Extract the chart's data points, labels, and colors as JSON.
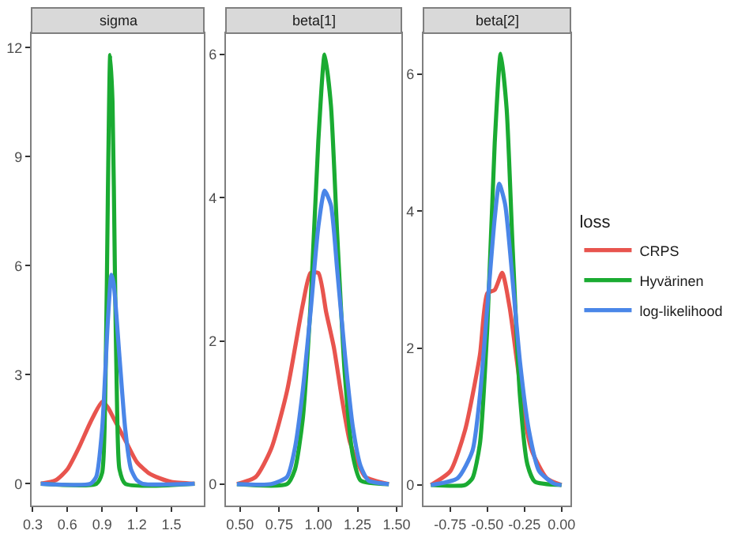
{
  "chart_data": [
    {
      "type": "line",
      "title": "sigma",
      "xlim": [
        0.29,
        1.78
      ],
      "ylim": [
        -0.6,
        12.4
      ],
      "xticks": [
        {
          "value": 0.3,
          "label": "0.3"
        },
        {
          "value": 0.6,
          "label": "0.6"
        },
        {
          "value": 0.9,
          "label": "0.9"
        },
        {
          "value": 1.2,
          "label": "1.2"
        },
        {
          "value": 1.5,
          "label": "1.5"
        }
      ],
      "yticks": [
        0,
        3,
        6,
        9,
        12
      ],
      "series": [
        {
          "color": "#e8544e",
          "x": [
            0.37,
            0.5,
            0.6,
            0.7,
            0.8,
            0.9,
            0.95,
            1.0,
            1.1,
            1.2,
            1.3,
            1.4,
            1.5,
            1.7
          ],
          "values": [
            0,
            0.1,
            0.4,
            1.0,
            1.7,
            2.25,
            2.1,
            1.8,
            1.2,
            0.6,
            0.3,
            0.15,
            0.05,
            0
          ]
        },
        {
          "color": "#1aab32",
          "x": [
            0.37,
            0.85,
            0.9,
            0.93,
            0.95,
            0.97,
            0.99,
            1.01,
            1.03,
            1.05,
            1.1,
            1.7
          ],
          "values": [
            0,
            0,
            0.3,
            3,
            8,
            11.8,
            10.5,
            6,
            2,
            0.4,
            0,
            0
          ]
        },
        {
          "color": "#4a86e8",
          "x": [
            0.37,
            0.8,
            0.85,
            0.9,
            0.95,
            0.98,
            1.0,
            1.05,
            1.1,
            1.15,
            1.2,
            1.25,
            1.7
          ],
          "values": [
            0,
            0,
            0.2,
            1.5,
            4.5,
            5.75,
            5.5,
            3.5,
            1.5,
            0.4,
            0.1,
            0,
            0
          ]
        }
      ]
    },
    {
      "type": "line",
      "title": "beta[1]",
      "xlim": [
        0.41,
        1.53
      ],
      "ylim": [
        -0.3,
        6.3
      ],
      "xticks": [
        {
          "value": 0.5,
          "label": "0.50"
        },
        {
          "value": 0.75,
          "label": "0.75"
        },
        {
          "value": 1.0,
          "label": "1.00"
        },
        {
          "value": 1.25,
          "label": "1.25"
        },
        {
          "value": 1.5,
          "label": "1.50"
        }
      ],
      "yticks": [
        0,
        2,
        4,
        6
      ],
      "series": [
        {
          "color": "#e8544e",
          "x": [
            0.48,
            0.6,
            0.7,
            0.8,
            0.9,
            0.95,
            1.0,
            1.05,
            1.1,
            1.15,
            1.2,
            1.25,
            1.3,
            1.45
          ],
          "values": [
            0,
            0.1,
            0.5,
            1.3,
            2.5,
            2.95,
            2.95,
            2.4,
            1.9,
            1.2,
            0.6,
            0.3,
            0.1,
            0
          ]
        },
        {
          "color": "#1aab32",
          "x": [
            0.48,
            0.8,
            0.85,
            0.9,
            0.95,
            1.0,
            1.04,
            1.08,
            1.12,
            1.17,
            1.22,
            1.27,
            1.45
          ],
          "values": [
            0,
            0,
            0.2,
            0.9,
            2.5,
            4.8,
            6.0,
            5.3,
            3.5,
            1.5,
            0.4,
            0.05,
            0
          ]
        },
        {
          "color": "#4a86e8",
          "x": [
            0.48,
            0.7,
            0.8,
            0.85,
            0.9,
            0.95,
            1.0,
            1.04,
            1.08,
            1.12,
            1.17,
            1.22,
            1.27,
            1.32,
            1.45
          ],
          "values": [
            0,
            0,
            0.1,
            0.5,
            1.3,
            2.4,
            3.6,
            4.1,
            3.9,
            3.0,
            1.8,
            0.8,
            0.25,
            0.05,
            0
          ]
        }
      ]
    },
    {
      "type": "line",
      "title": "beta[2]",
      "xlim": [
        -0.93,
        0.06
      ],
      "ylim": [
        -0.3,
        6.6
      ],
      "xticks": [
        {
          "value": -0.75,
          "label": "-0.75"
        },
        {
          "value": -0.5,
          "label": "-0.50"
        },
        {
          "value": -0.25,
          "label": "-0.25"
        },
        {
          "value": 0,
          "label": "0.00"
        }
      ],
      "yticks": [
        0,
        2,
        4,
        6
      ],
      "legend": "right",
      "legend_title": "loss",
      "series": [
        {
          "name": "CRPS",
          "color": "#e8544e",
          "x": [
            -0.88,
            -0.75,
            -0.65,
            -0.55,
            -0.5,
            -0.45,
            -0.4,
            -0.35,
            -0.3,
            -0.25,
            -0.2,
            -0.1,
            0
          ],
          "values": [
            0,
            0.2,
            0.8,
            1.9,
            2.8,
            2.85,
            3.1,
            2.6,
            1.8,
            1.0,
            0.5,
            0.1,
            0
          ]
        },
        {
          "name": "Hyvärinen",
          "color": "#1aab32",
          "x": [
            -0.88,
            -0.65,
            -0.6,
            -0.55,
            -0.5,
            -0.45,
            -0.41,
            -0.37,
            -0.33,
            -0.28,
            -0.23,
            -0.18,
            0
          ],
          "values": [
            0,
            0,
            0.1,
            0.6,
            2.3,
            5.0,
            6.3,
            5.5,
            3.5,
            1.3,
            0.3,
            0.05,
            0
          ]
        },
        {
          "name": "log-likelihood",
          "color": "#4a86e8",
          "x": [
            -0.88,
            -0.7,
            -0.6,
            -0.55,
            -0.5,
            -0.45,
            -0.42,
            -0.38,
            -0.33,
            -0.28,
            -0.22,
            -0.15,
            -0.05,
            0
          ],
          "values": [
            0,
            0.1,
            0.5,
            1.3,
            2.6,
            3.9,
            4.4,
            4.1,
            3.0,
            1.8,
            0.8,
            0.2,
            0.02,
            0
          ]
        }
      ]
    }
  ]
}
